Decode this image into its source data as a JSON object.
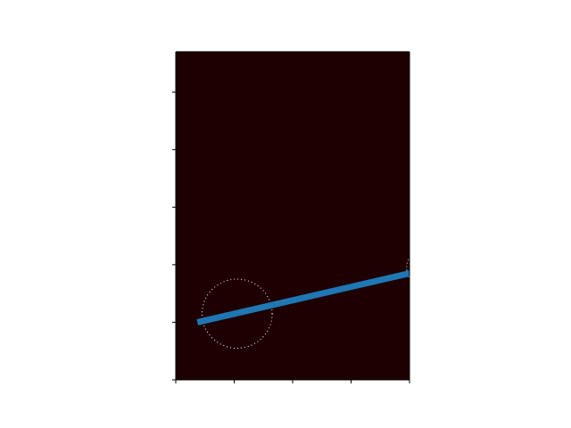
{
  "chart_data": {
    "type": "line",
    "title": "",
    "xlabel": "",
    "ylabel": "",
    "xlim": [
      -0.1,
      3.9
    ],
    "ylim": [
      5.7,
      0.0
    ],
    "grid": false,
    "legend": "none",
    "background_color": "#1e0000",
    "xticks": [
      -0.1,
      0.9,
      1.9,
      2.9,
      3.9
    ],
    "yticks": [
      0.0,
      1.0,
      2.0,
      3.0,
      4.0,
      5.0
    ],
    "series": [
      {
        "x": [
          0.27,
          3.9
        ],
        "y": [
          1.0,
          1.85
        ],
        "color": "#1f77b4",
        "style": "solid"
      }
    ],
    "shapes": [
      {
        "kind": "circle",
        "cx": 0.95,
        "cy": 1.15,
        "r": 0.6,
        "color": "#ffffff",
        "style": "dotted"
      },
      {
        "kind": "circle",
        "cx": 4.2,
        "cy": 1.95,
        "r": 0.35,
        "color": "#ffffff",
        "style": "dotted"
      }
    ]
  }
}
